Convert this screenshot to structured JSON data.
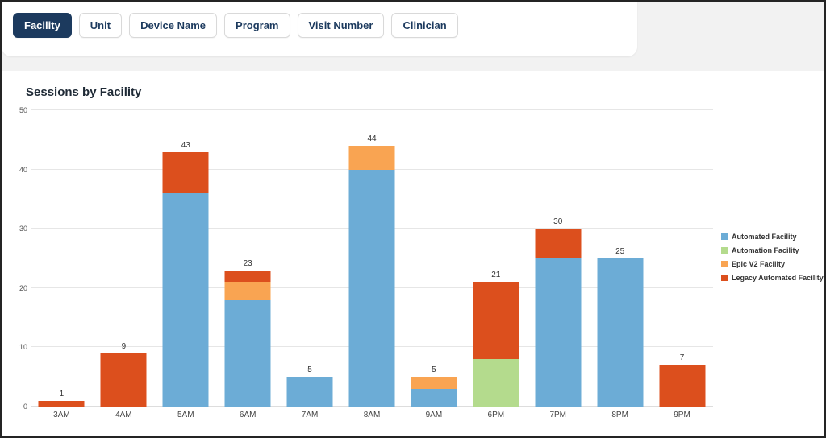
{
  "filters": {
    "items": [
      {
        "label": "Facility",
        "selected": true
      },
      {
        "label": "Unit",
        "selected": false
      },
      {
        "label": "Device Name",
        "selected": false
      },
      {
        "label": "Program",
        "selected": false
      },
      {
        "label": "Visit Number",
        "selected": false
      },
      {
        "label": "Clinician",
        "selected": false
      }
    ]
  },
  "colors": {
    "selected_filter_bg": "#1c3a5e",
    "filter_text": "#1c3a5e",
    "card_bg": "#ffffff",
    "page_bg": "#f2f2f2"
  },
  "chart_data": {
    "type": "bar",
    "stacked": true,
    "title": "Sessions by Facility",
    "categories": [
      "3AM",
      "4AM",
      "5AM",
      "6AM",
      "7AM",
      "8AM",
      "9AM",
      "6PM",
      "7PM",
      "8PM",
      "9PM"
    ],
    "series": [
      {
        "name": "Automated Facility",
        "color": "#6cacd6",
        "values": [
          0,
          0,
          36,
          18,
          5,
          40,
          3,
          0,
          25,
          25,
          0
        ]
      },
      {
        "name": "Automation Facility",
        "color": "#b4db8d",
        "values": [
          0,
          0,
          0,
          0,
          0,
          0,
          0,
          8,
          0,
          0,
          0
        ]
      },
      {
        "name": "Epic V2 Facility",
        "color": "#f9a452",
        "values": [
          0,
          0,
          0,
          3,
          0,
          4,
          2,
          0,
          0,
          0,
          0
        ]
      },
      {
        "name": "Legacy Automated Facility",
        "color": "#dc4f1d",
        "values": [
          1,
          9,
          7,
          2,
          0,
          0,
          0,
          13,
          5,
          0,
          7
        ]
      }
    ],
    "totals": [
      1,
      9,
      43,
      23,
      5,
      44,
      5,
      21,
      30,
      25,
      7
    ],
    "y_ticks": [
      0,
      10,
      20,
      30,
      40,
      50
    ],
    "ylim": [
      0,
      50
    ],
    "grid": true,
    "legend_position": "right"
  }
}
